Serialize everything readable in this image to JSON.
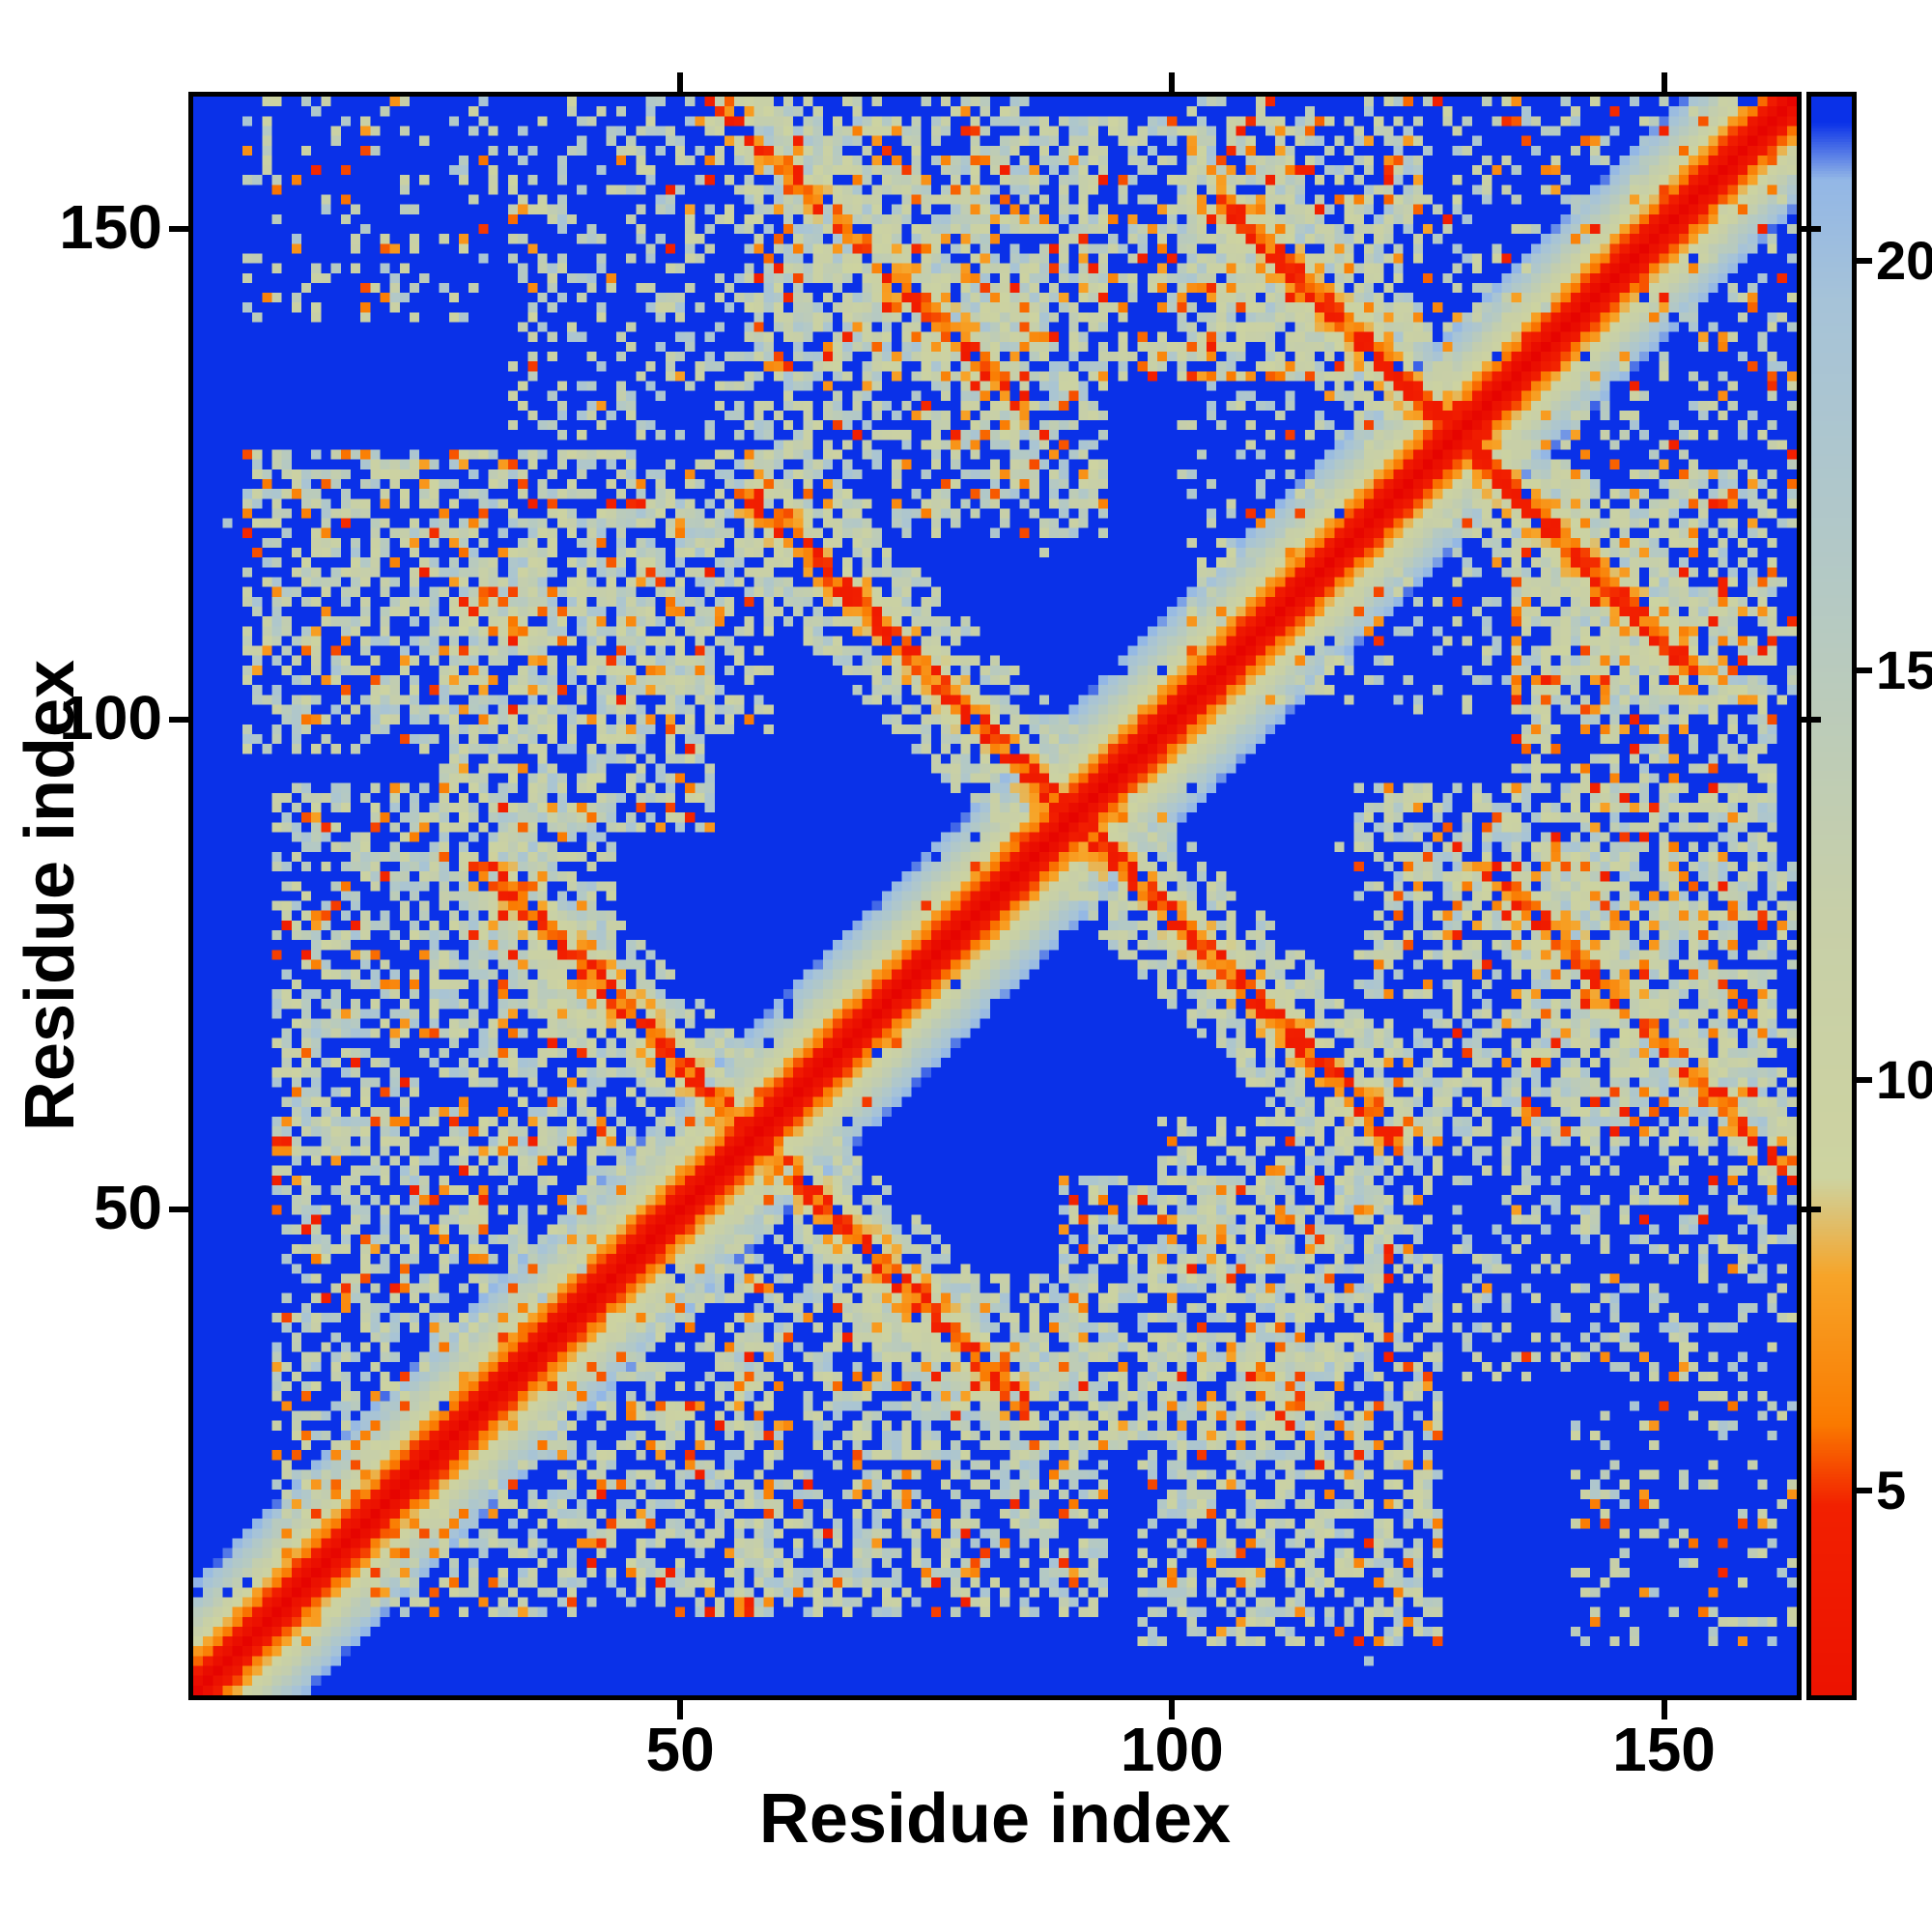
{
  "figure": {
    "background_color": "#ffffff",
    "frame_color": "#000000",
    "max_distance_color": "#0a31e8"
  },
  "chart_data": {
    "type": "heatmap",
    "title": "",
    "xlabel": "Residue index",
    "ylabel": "Residue index",
    "x_range": [
      1,
      163
    ],
    "y_range": [
      1,
      163
    ],
    "xlim": [
      0.5,
      163.5
    ],
    "ylim": [
      0.5,
      163.5
    ],
    "x_ticks": [
      50,
      100,
      150
    ],
    "y_ticks": [
      50,
      100,
      150
    ],
    "colorbar_ticks": [
      5,
      10,
      15,
      20
    ],
    "value_min": 2.5,
    "value_max": 22,
    "grid": false,
    "legend": null,
    "description": "Symmetric residue-residue distance map (163 residues). Bright red main diagonal (shortest distances) flanked by orange then pale sage-green and light blue bands; anti-diagonal contact stripes cross the main diagonal near residues 57, 89 and 128; speckled off-diagonal contact clusters sit on a saturated blue background representing distances at or above the colour-scale cap (~22).",
    "colormap_stops": [
      [
        0.0,
        "#e60400"
      ],
      [
        4.8,
        "#f22000"
      ],
      [
        5.8,
        "#fa7a00"
      ],
      [
        7.6,
        "#f7a428"
      ],
      [
        8.8,
        "#cdd3a0"
      ],
      [
        12.0,
        "#c7cfa8"
      ],
      [
        16.0,
        "#b4c9c4"
      ],
      [
        19.5,
        "#a6c3d8"
      ],
      [
        21.0,
        "#93b7e6"
      ],
      [
        21.7,
        "#0a31e8"
      ],
      [
        22.0,
        "#0a31e8"
      ]
    ],
    "generator": {
      "seed": 11,
      "n": 163,
      "cap": 22,
      "slope": 1.9,
      "band_noise": 1.1,
      "band_dropout": 0.02,
      "stripes": [
        {
          "c": 113,
          "i0": 30,
          "i1": 84,
          "w": 8
        },
        {
          "c": 178,
          "i0": 56,
          "i1": 122,
          "w": 9
        },
        {
          "c": 256,
          "i0": 104,
          "i1": 152,
          "w": 8
        },
        {
          "c": 215,
          "i0": 52,
          "i1": 84,
          "w": 7
        }
      ],
      "blobs": [
        {
          "x0": 8,
          "x1": 42,
          "y0": 55,
          "y1": 92,
          "p": 0.5,
          "po": 0.06
        },
        {
          "x0": 5,
          "x1": 35,
          "y0": 96,
          "y1": 126,
          "p": 0.5,
          "po": 0.06
        },
        {
          "x0": 36,
          "x1": 58,
          "y0": 98,
          "y1": 126,
          "p": 0.5,
          "po": 0.06
        },
        {
          "x0": 8,
          "x1": 58,
          "y0": 8,
          "y1": 58,
          "p": 0.28,
          "po": 0.04
        },
        {
          "x0": 88,
          "x1": 116,
          "y0": 25,
          "y1": 52,
          "p": 0.5,
          "po": 0.06
        },
        {
          "x0": 128,
          "x1": 162,
          "y0": 32,
          "y1": 62,
          "p": 0.28,
          "po": 0.03
        },
        {
          "x0": 118,
          "x1": 160,
          "y0": 58,
          "y1": 92,
          "p": 0.48,
          "po": 0.06
        },
        {
          "x0": 56,
          "x1": 86,
          "y0": 134,
          "y1": 162,
          "p": 0.42,
          "po": 0.05
        },
        {
          "x0": 88,
          "x1": 112,
          "y0": 134,
          "y1": 160,
          "p": 0.38,
          "po": 0.05
        },
        {
          "x0": 5,
          "x1": 30,
          "y0": 140,
          "y1": 162,
          "p": 0.2,
          "po": 0.03
        },
        {
          "x0": 134,
          "x1": 160,
          "y0": 100,
          "y1": 124,
          "p": 0.45,
          "po": 0.05
        },
        {
          "x0": 100,
          "x1": 162,
          "y0": 100,
          "y1": 162,
          "p": 0.12,
          "po": 0.02
        }
      ],
      "speckle_p": 0.0012
    }
  }
}
